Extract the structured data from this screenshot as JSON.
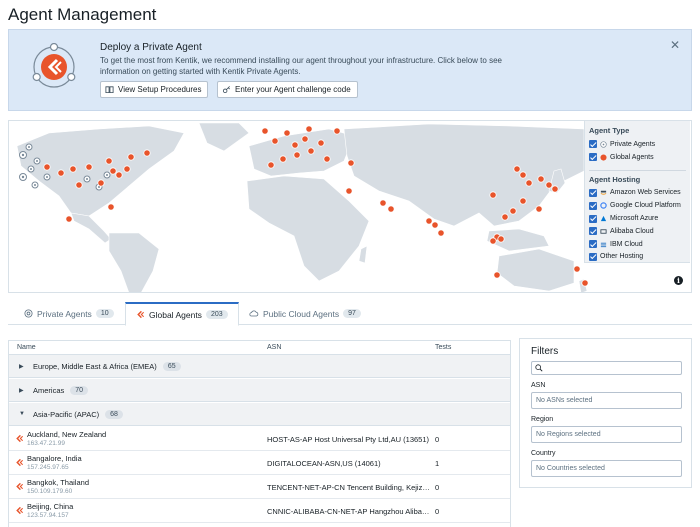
{
  "page": {
    "title": "Agent Management"
  },
  "banner": {
    "title": "Deploy a Private Agent",
    "text": "To get the most from Kentik, we recommend installing our agent throughout your infrastructure. Click below to see information on getting started with Kentik Private Agents.",
    "setup_button": "View Setup Procedures",
    "challenge_button": "Enter your Agent challenge code",
    "close_icon": "close-icon"
  },
  "legend": {
    "type_heading": "Agent Type",
    "types": [
      "Private Agents",
      "Global Agents"
    ],
    "hosting_heading": "Agent Hosting",
    "hosting": [
      "Amazon Web Services",
      "Google Cloud Platform",
      "Microsoft Azure",
      "Alibaba Cloud",
      "IBM Cloud",
      "Other Hosting"
    ]
  },
  "colors": {
    "accent": "#2b6cc4",
    "agent_orange": "#e8542b",
    "land": "#d7dde3",
    "banner_bg": "#dbe8f7"
  },
  "tabs": [
    {
      "label": "Private Agents",
      "count": "10"
    },
    {
      "label": "Global Agents",
      "count": "203"
    },
    {
      "label": "Public Cloud Agents",
      "count": "97"
    }
  ],
  "table": {
    "columns": [
      "Name",
      "ASN",
      "Tests"
    ],
    "groups": [
      {
        "label": "Europe, Middle East & Africa (EMEA)",
        "count": "65"
      },
      {
        "label": "Americas",
        "count": "70"
      },
      {
        "label": "Asia-Pacific (APAC)",
        "count": "68"
      }
    ],
    "rows": [
      {
        "name": "Auckland, New Zealand",
        "ip": "163.47.21.99",
        "asn": "HOST-AS-AP Host Universal Pty Ltd,AU (13651)",
        "tests": "0"
      },
      {
        "name": "Bangalore, India",
        "ip": "157.245.97.65",
        "asn": "DIGITALOCEAN-ASN,US (14061)",
        "tests": "1"
      },
      {
        "name": "Bangkok, Thailand",
        "ip": "150.109.179.60",
        "asn": "TENCENT-NET-AP-CN Tencent Building, Kejizhongyi Avenue",
        "tests": "0"
      },
      {
        "name": "Beijing, China",
        "ip": "123.57.94.157",
        "asn": "CNNIC-ALIBABA-CN-NET-AP Hangzhou Alibaba Advertising Co.",
        "tests": "0"
      }
    ]
  },
  "filters": {
    "title": "Filters",
    "asn_label": "ASN",
    "asn_placeholder": "No ASNs selected",
    "region_label": "Region",
    "region_placeholder": "No Regions selected",
    "country_label": "Country",
    "country_placeholder": "No Countries selected"
  }
}
